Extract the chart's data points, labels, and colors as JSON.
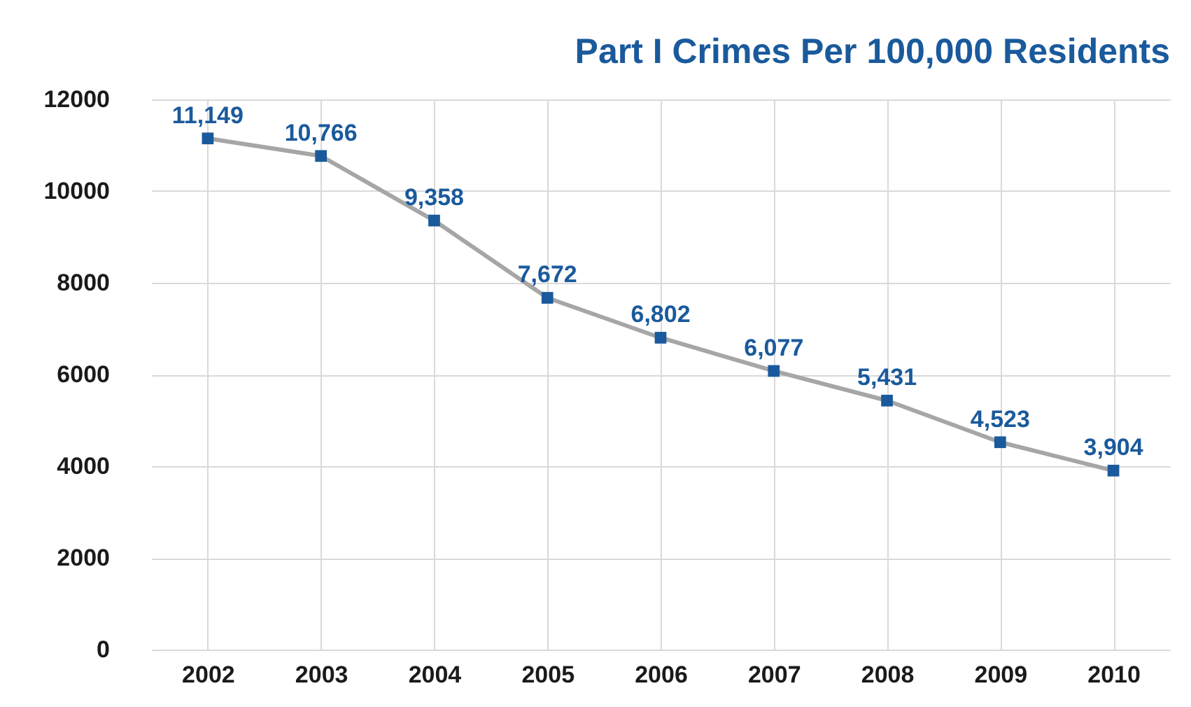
{
  "chart_data": {
    "type": "line",
    "title": "Part I Crimes Per 100,000 Residents",
    "categories": [
      "2002",
      "2003",
      "2004",
      "2005",
      "2006",
      "2007",
      "2008",
      "2009",
      "2010"
    ],
    "series": [
      {
        "color": "#1a5a9c",
        "values": [
          11149,
          10766,
          9358,
          7672,
          6802,
          6077,
          5431,
          4523,
          3904
        ],
        "value_labels": [
          "11,149",
          "10,766",
          "9,358",
          "7,672",
          "6,802",
          "6,077",
          "5,431",
          "4,523",
          "3,904"
        ]
      }
    ],
    "ylim": [
      0,
      12000
    ],
    "yticks": [
      0,
      2000,
      4000,
      6000,
      8000,
      10000,
      12000
    ],
    "grid": true,
    "marker": "square",
    "line_style": "solid"
  }
}
